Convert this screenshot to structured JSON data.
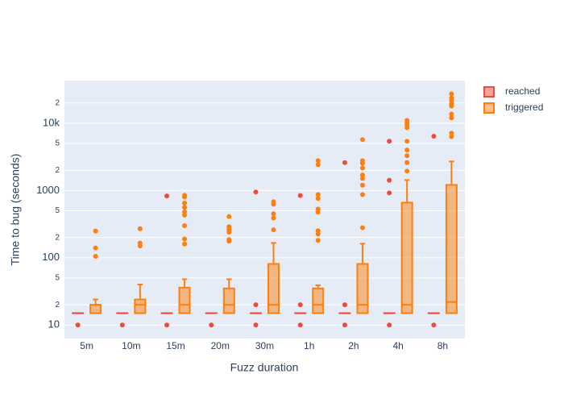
{
  "chart_data": {
    "type": "box",
    "x_label": "Fuzz duration",
    "y_label": "Time to bug (seconds)",
    "categories": [
      "5m",
      "10m",
      "15m",
      "20m",
      "30m",
      "1h",
      "2h",
      "4h",
      "8h"
    ],
    "log_y": true,
    "grid": true,
    "legend": "top-right",
    "ylim": [
      6.3,
      43000
    ],
    "yticks": [
      10,
      {
        "value": 20,
        "label": "2"
      },
      {
        "value": 50,
        "label": "5"
      },
      100,
      {
        "value": 200,
        "label": "2"
      },
      {
        "value": 500,
        "label": "5"
      },
      1000,
      {
        "value": 2000,
        "label": "2"
      },
      {
        "value": 5000,
        "label": "5"
      },
      {
        "value": 10000,
        "label": "10k"
      },
      {
        "value": 20000,
        "label": "2"
      }
    ],
    "series": [
      {
        "name": "reached",
        "color": "#ef4a3c",
        "stats": [
          {
            "min": 15,
            "q1": 15,
            "median": 15,
            "q3": 15,
            "max": 15,
            "outliers": [
              10
            ]
          },
          {
            "min": 15,
            "q1": 15,
            "median": 15,
            "q3": 15,
            "max": 15,
            "outliers": [
              10
            ]
          },
          {
            "min": 15,
            "q1": 15,
            "median": 15,
            "q3": 15,
            "max": 15,
            "outliers": [
              10,
              830
            ]
          },
          {
            "min": 15,
            "q1": 15,
            "median": 15,
            "q3": 15,
            "max": 15,
            "outliers": [
              10
            ]
          },
          {
            "min": 15,
            "q1": 15,
            "median": 15,
            "q3": 15,
            "max": 15,
            "outliers": [
              10,
              20,
              950
            ]
          },
          {
            "min": 15,
            "q1": 15,
            "median": 15,
            "q3": 15,
            "max": 15,
            "outliers": [
              10,
              20,
              840
            ]
          },
          {
            "min": 15,
            "q1": 15,
            "median": 15,
            "q3": 15,
            "max": 15,
            "outliers": [
              10,
              20,
              2600
            ]
          },
          {
            "min": 15,
            "q1": 15,
            "median": 15,
            "q3": 15,
            "max": 15,
            "outliers": [
              10,
              920,
              1420,
              5400
            ]
          },
          {
            "min": 15,
            "q1": 15,
            "median": 15,
            "q3": 15,
            "max": 15,
            "outliers": [
              10,
              6400
            ]
          }
        ]
      },
      {
        "name": "triggered",
        "color": "#ff7f0e",
        "stats": [
          {
            "min": 15,
            "q1": 15,
            "median": 15,
            "q3": 20,
            "max": 24,
            "outliers": [
              250,
              140,
              105
            ]
          },
          {
            "min": 15,
            "q1": 15,
            "median": 20,
            "q3": 24,
            "max": 40,
            "outliers": [
              270,
              165,
              150
            ]
          },
          {
            "min": 15,
            "q1": 15,
            "median": 20,
            "q3": 36,
            "max": 48,
            "outliers": [
              850,
              800,
              650,
              560,
              480,
              430,
              300,
              190,
              160
            ]
          },
          {
            "min": 15,
            "q1": 15,
            "median": 20,
            "q3": 35,
            "max": 48,
            "outliers": [
              410,
              290,
              260,
              240,
              186,
              176
            ]
          },
          {
            "min": 15,
            "q1": 15,
            "median": 20,
            "q3": 81,
            "max": 166,
            "outliers": [
              680,
              625,
              450,
              390,
              260
            ]
          },
          {
            "min": 15,
            "q1": 15,
            "median": 20,
            "q3": 35,
            "max": 39,
            "outliers": [
              2770,
              2420,
              870,
              760,
              530,
              475,
              252,
              225,
              181
            ]
          },
          {
            "min": 15,
            "q1": 15,
            "median": 20,
            "q3": 81,
            "max": 162,
            "outliers": [
              5700,
              2770,
              2540,
              2160,
              1700,
              1510,
              1200,
              870,
              280
            ]
          },
          {
            "min": 15,
            "q1": 15,
            "median": 20,
            "q3": 660,
            "max": 1430,
            "outliers": [
              11000,
              10100,
              9340,
              8600,
              5400,
              4000,
              3280,
              2600,
              1940
            ]
          },
          {
            "min": 15,
            "q1": 15,
            "median": 22,
            "q3": 1210,
            "max": 2700,
            "outliers": [
              27300,
              23700,
              21900,
              19600,
              18000,
              13700,
              12000,
              7100,
              6320
            ]
          }
        ]
      }
    ]
  }
}
